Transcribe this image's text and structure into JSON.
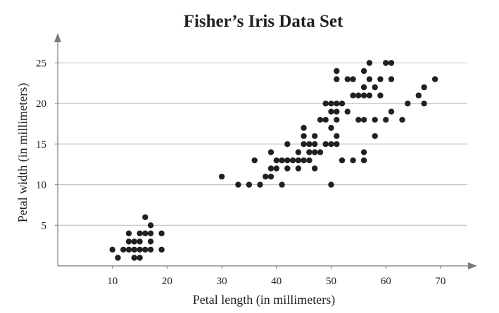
{
  "chart_data": {
    "type": "scatter",
    "title": "Fisher’s Iris Data Set",
    "xlabel": "Petal length (in millimeters)",
    "ylabel": "Petal width (in millimeters)",
    "xlim": [
      0,
      75
    ],
    "ylim": [
      0,
      28
    ],
    "xticks": [
      10,
      20,
      30,
      40,
      50,
      60,
      70
    ],
    "yticks": [
      5,
      10,
      15,
      20,
      25
    ],
    "grid": "horizontal",
    "colors": {
      "points": "#231f20",
      "grid": "#b9b9b9",
      "axis": "#7a7a7a"
    },
    "series": [
      {
        "points": [
          [
            10,
            2
          ],
          [
            11,
            1
          ],
          [
            12,
            2
          ],
          [
            13,
            2
          ],
          [
            13,
            3
          ],
          [
            13,
            4
          ],
          [
            14,
            1
          ],
          [
            14,
            2
          ],
          [
            14,
            3
          ],
          [
            15,
            1
          ],
          [
            15,
            2
          ],
          [
            15,
            3
          ],
          [
            15,
            4
          ],
          [
            16,
            2
          ],
          [
            16,
            4
          ],
          [
            16,
            6
          ],
          [
            17,
            2
          ],
          [
            17,
            3
          ],
          [
            17,
            4
          ],
          [
            17,
            5
          ],
          [
            19,
            2
          ],
          [
            19,
            4
          ],
          [
            30,
            11
          ],
          [
            33,
            10
          ],
          [
            35,
            10
          ],
          [
            36,
            13
          ],
          [
            37,
            10
          ],
          [
            38,
            11
          ],
          [
            39,
            11
          ],
          [
            39,
            12
          ],
          [
            39,
            14
          ],
          [
            40,
            12
          ],
          [
            40,
            13
          ],
          [
            41,
            10
          ],
          [
            41,
            13
          ],
          [
            42,
            12
          ],
          [
            42,
            13
          ],
          [
            42,
            15
          ],
          [
            43,
            13
          ],
          [
            44,
            12
          ],
          [
            44,
            13
          ],
          [
            44,
            14
          ],
          [
            45,
            13
          ],
          [
            45,
            15
          ],
          [
            45,
            16
          ],
          [
            45,
            17
          ],
          [
            46,
            13
          ],
          [
            46,
            14
          ],
          [
            46,
            15
          ],
          [
            47,
            12
          ],
          [
            47,
            14
          ],
          [
            47,
            15
          ],
          [
            47,
            16
          ],
          [
            48,
            14
          ],
          [
            48,
            18
          ],
          [
            49,
            15
          ],
          [
            49,
            18
          ],
          [
            49,
            20
          ],
          [
            50,
            10
          ],
          [
            50,
            15
          ],
          [
            50,
            17
          ],
          [
            50,
            19
          ],
          [
            50,
            20
          ],
          [
            51,
            15
          ],
          [
            51,
            16
          ],
          [
            51,
            18
          ],
          [
            51,
            19
          ],
          [
            51,
            20
          ],
          [
            51,
            23
          ],
          [
            51,
            24
          ],
          [
            52,
            13
          ],
          [
            52,
            20
          ],
          [
            53,
            19
          ],
          [
            53,
            23
          ],
          [
            54,
            13
          ],
          [
            54,
            21
          ],
          [
            54,
            23
          ],
          [
            55,
            18
          ],
          [
            55,
            21
          ],
          [
            56,
            13
          ],
          [
            56,
            14
          ],
          [
            56,
            18
          ],
          [
            56,
            21
          ],
          [
            56,
            22
          ],
          [
            56,
            24
          ],
          [
            57,
            21
          ],
          [
            57,
            23
          ],
          [
            57,
            25
          ],
          [
            58,
            16
          ],
          [
            58,
            18
          ],
          [
            58,
            22
          ],
          [
            59,
            21
          ],
          [
            59,
            23
          ],
          [
            60,
            18
          ],
          [
            60,
            25
          ],
          [
            61,
            19
          ],
          [
            61,
            23
          ],
          [
            61,
            25
          ],
          [
            63,
            18
          ],
          [
            64,
            20
          ],
          [
            66,
            21
          ],
          [
            67,
            20
          ],
          [
            67,
            22
          ],
          [
            69,
            23
          ]
        ]
      }
    ]
  }
}
